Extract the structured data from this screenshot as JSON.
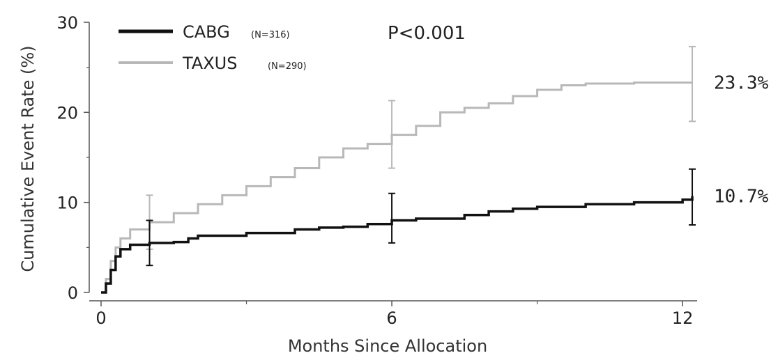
{
  "chart_data": {
    "type": "line",
    "xlabel": "Months Since Allocation",
    "ylabel": "Cumulative Event Rate (%)",
    "xlim": [
      0,
      12.3
    ],
    "ylim": [
      0,
      30
    ],
    "xticks": [
      "0",
      "6",
      "12"
    ],
    "yticks": [
      "0",
      "10",
      "20",
      "30"
    ],
    "grid": false,
    "legend_position": "top-left",
    "annotation": "P<0.001",
    "series": [
      {
        "name": "CABG",
        "n_label": "(N=316)",
        "color": "#111111",
        "end_label": "10.7%",
        "x": [
          0,
          0.1,
          0.2,
          0.3,
          0.4,
          0.6,
          1.0,
          1.5,
          1.8,
          2.0,
          3.0,
          4.0,
          4.5,
          5.0,
          5.5,
          6.0,
          6.5,
          7.5,
          8.0,
          8.5,
          9.0,
          10.0,
          11.0,
          12.0,
          12.2
        ],
        "y": [
          0,
          1.0,
          2.5,
          4.0,
          4.8,
          5.3,
          5.5,
          5.6,
          6.0,
          6.3,
          6.6,
          7.0,
          7.2,
          7.3,
          7.6,
          8.0,
          8.2,
          8.6,
          9.0,
          9.3,
          9.5,
          9.8,
          10.0,
          10.3,
          10.7
        ],
        "error_bars": [
          {
            "x": 1.0,
            "low": 3.0,
            "high": 8.0
          },
          {
            "x": 6.0,
            "low": 5.5,
            "high": 11.0
          },
          {
            "x": 12.2,
            "low": 7.5,
            "high": 13.7
          }
        ]
      },
      {
        "name": "TAXUS",
        "n_label": "(N=290)",
        "color": "#b8b8b8",
        "end_label": "23.3%",
        "x": [
          0,
          0.1,
          0.2,
          0.3,
          0.4,
          0.6,
          1.0,
          1.5,
          2.0,
          2.5,
          3.0,
          3.5,
          4.0,
          4.5,
          5.0,
          5.5,
          6.0,
          6.5,
          7.0,
          7.5,
          8.0,
          8.5,
          9.0,
          9.5,
          10.0,
          11.0,
          12.0,
          12.2
        ],
        "y": [
          0,
          1.5,
          3.5,
          5.0,
          6.0,
          7.0,
          7.8,
          8.8,
          9.8,
          10.8,
          11.8,
          12.8,
          13.8,
          15.0,
          16.0,
          16.5,
          17.5,
          18.5,
          20.0,
          20.5,
          21.0,
          21.8,
          22.5,
          23.0,
          23.2,
          23.3,
          23.3,
          23.3
        ],
        "error_bars": [
          {
            "x": 1.0,
            "low": 4.8,
            "high": 10.8
          },
          {
            "x": 6.0,
            "low": 13.8,
            "high": 21.3
          },
          {
            "x": 12.2,
            "low": 19.0,
            "high": 27.3
          }
        ]
      }
    ]
  }
}
